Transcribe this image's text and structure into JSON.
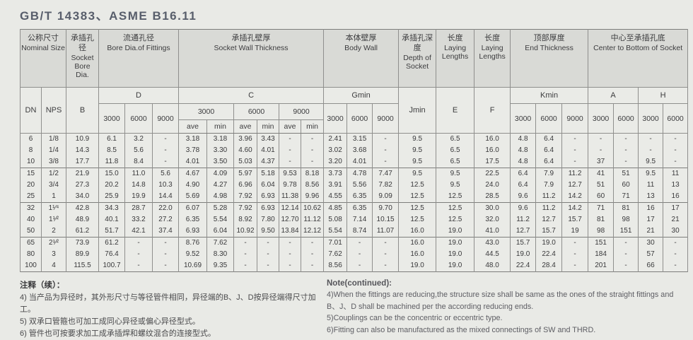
{
  "title": "GB/T 14383、ASME B16.11",
  "table": {
    "groups": [
      {
        "zh": "公称尺寸",
        "en": "Nominal Size"
      },
      {
        "zh": "承插孔径",
        "en": "Socket Bore Dia."
      },
      {
        "zh": "流通孔径",
        "en": "Bore Dia.of Fittings"
      },
      {
        "zh": "承插孔壁厚",
        "en": "Socket Wall Thickness"
      },
      {
        "zh": "本体壁厚",
        "en": "Body Wall"
      },
      {
        "zh": "承插孔深度",
        "en": "Depth of Socket"
      },
      {
        "zh": "长度",
        "en": "Laying Lengths"
      },
      {
        "zh": "长度",
        "en": "Laying Lengths"
      },
      {
        "zh": "顶部厚度",
        "en": "End  Thickness"
      },
      {
        "zh": "中心至承插孔底",
        "en": "Center to Bottom of Socket"
      }
    ],
    "sub": {
      "dn": "DN",
      "nps": "NPS",
      "b": "B",
      "d": "D",
      "c": "C",
      "gmin": "Gmin",
      "jmin": "Jmin",
      "e": "E",
      "f": "F",
      "kmin": "Kmin",
      "a": "A",
      "h": "H"
    },
    "pressures": [
      "3000",
      "6000",
      "9000"
    ],
    "avemin": [
      "ave",
      "min"
    ],
    "rows": [
      [
        "6",
        "1/8",
        "10.9",
        "6.1",
        "3.2",
        "-",
        "3.18",
        "3.18",
        "3.96",
        "3.43",
        "-",
        "-",
        "2.41",
        "3.15",
        "-",
        "9.5",
        "6.5",
        "16.0",
        "4.8",
        "6.4",
        "-",
        "-",
        "-",
        "-",
        "-"
      ],
      [
        "8",
        "1/4",
        "14.3",
        "8.5",
        "5.6",
        "-",
        "3.78",
        "3.30",
        "4.60",
        "4.01",
        "-",
        "-",
        "3.02",
        "3.68",
        "-",
        "9.5",
        "6.5",
        "16.0",
        "4.8",
        "6.4",
        "-",
        "-",
        "-",
        "-",
        "-"
      ],
      [
        "10",
        "3/8",
        "17.7",
        "11.8",
        "8.4",
        "-",
        "4.01",
        "3.50",
        "5.03",
        "4.37",
        "-",
        "-",
        "3.20",
        "4.01",
        "-",
        "9.5",
        "6.5",
        "17.5",
        "4.8",
        "6.4",
        "-",
        "37",
        "-",
        "9.5",
        "-"
      ],
      [
        "15",
        "1/2",
        "21.9",
        "15.0",
        "11.0",
        "5.6",
        "4.67",
        "4.09",
        "5.97",
        "5.18",
        "9.53",
        "8.18",
        "3.73",
        "4.78",
        "7.47",
        "9.5",
        "9.5",
        "22.5",
        "6.4",
        "7.9",
        "11.2",
        "41",
        "51",
        "9.5",
        "11"
      ],
      [
        "20",
        "3/4",
        "27.3",
        "20.2",
        "14.8",
        "10.3",
        "4.90",
        "4.27",
        "6.96",
        "6.04",
        "9.78",
        "8.56",
        "3.91",
        "5.56",
        "7.82",
        "12.5",
        "9.5",
        "24.0",
        "6.4",
        "7.9",
        "12.7",
        "51",
        "60",
        "11",
        "13"
      ],
      [
        "25",
        "1",
        "34.0",
        "25.9",
        "19.9",
        "14.4",
        "5.69",
        "4.98",
        "7.92",
        "6.93",
        "11.38",
        "9.96",
        "4.55",
        "6.35",
        "9.09",
        "12.5",
        "12.5",
        "28.5",
        "9.6",
        "11.2",
        "14.2",
        "60",
        "71",
        "13",
        "16"
      ],
      [
        "32",
        "1¹⁄⁴",
        "42.8",
        "34.3",
        "28.7",
        "22.0",
        "6.07",
        "5.28",
        "7.92",
        "6.93",
        "12.14",
        "10.62",
        "4.85",
        "6.35",
        "9.70",
        "12.5",
        "12.5",
        "30.0",
        "9.6",
        "11.2",
        "14.2",
        "71",
        "81",
        "16",
        "17"
      ],
      [
        "40",
        "1¹⁄²",
        "48.9",
        "40.1",
        "33.2",
        "27.2",
        "6.35",
        "5.54",
        "8.92",
        "7.80",
        "12.70",
        "11.12",
        "5.08",
        "7.14",
        "10.15",
        "12.5",
        "12.5",
        "32.0",
        "11.2",
        "12.7",
        "15.7",
        "81",
        "98",
        "17",
        "21"
      ],
      [
        "50",
        "2",
        "61.2",
        "51.7",
        "42.1",
        "37.4",
        "6.93",
        "6.04",
        "10.92",
        "9.50",
        "13.84",
        "12.12",
        "5.54",
        "8.74",
        "11.07",
        "16.0",
        "19.0",
        "41.0",
        "12.7",
        "15.7",
        "19",
        "98",
        "151",
        "21",
        "30"
      ],
      [
        "65",
        "2¹⁄²",
        "73.9",
        "61.2",
        "-",
        "-",
        "8.76",
        "7.62",
        "-",
        "-",
        "-",
        "-",
        "7.01",
        "-",
        "-",
        "16.0",
        "19.0",
        "43.0",
        "15.7",
        "19.0",
        "-",
        "151",
        "-",
        "30",
        "-"
      ],
      [
        "80",
        "3",
        "89.9",
        "76.4",
        "-",
        "-",
        "9.52",
        "8.30",
        "-",
        "-",
        "-",
        "-",
        "7.62",
        "-",
        "-",
        "16.0",
        "19.0",
        "44.5",
        "19.0",
        "22.4",
        "-",
        "184",
        "-",
        "57",
        "-"
      ],
      [
        "100",
        "4",
        "115.5",
        "100.7",
        "-",
        "-",
        "10.69",
        "9.35",
        "-",
        "-",
        "-",
        "-",
        "8.56",
        "-",
        "-",
        "19.0",
        "19.0",
        "48.0",
        "22.4",
        "28.4",
        "-",
        "201",
        "-",
        "66",
        "-"
      ]
    ]
  },
  "notes": {
    "zh_title": "注释（续）：",
    "zh_items": [
      "4) 当产品为异径时，其外形尺寸与等径管件相同，异径端的B、J、D按异径端得尺寸加工。",
      "5) 双承口管箍也可加工成同心异径或偏心异径型式。",
      "6) 管件也可按要求加工成承插焊和螺纹混合的连接型式。"
    ],
    "en_title": "Note(continued):",
    "en_items": [
      "4)When the fittings are reducing,the structure size shall be same as the ones of the straight fittings and B、J、D shall be machined per the according reducing ends.",
      "5)Couplings can be the concentric or eccentric type.",
      "6)Fitting can also be manufactured as the mixed connectings of SW and THRD."
    ]
  }
}
